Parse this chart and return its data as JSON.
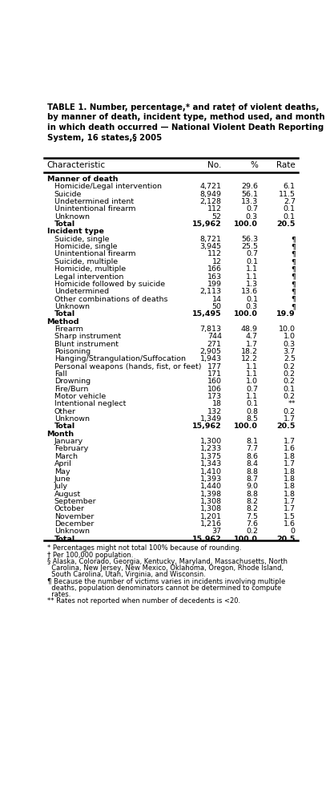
{
  "title": "TABLE 1. Number, percentage,* and rate† of violent deaths,\nby manner of death, incident type, method used, and month\nin which death occurred — National Violent Death Reporting\nSystem, 16 states,§ 2005",
  "col_headers": [
    "Characteristic",
    "No.",
    "%",
    "Rate"
  ],
  "rows": [
    {
      "label": "Manner of death",
      "no": "",
      "pct": "",
      "rate": "",
      "bold": true,
      "indent": 0,
      "section_header": true
    },
    {
      "label": "Homicide/Legal intervention",
      "no": "4,721",
      "pct": "29.6",
      "rate": "6.1",
      "bold": false,
      "indent": 1
    },
    {
      "label": "Suicide",
      "no": "8,949",
      "pct": "56.1",
      "rate": "11.5",
      "bold": false,
      "indent": 1
    },
    {
      "label": "Undetermined intent",
      "no": "2,128",
      "pct": "13.3",
      "rate": "2.7",
      "bold": false,
      "indent": 1
    },
    {
      "label": "Unintentional firearm",
      "no": "112",
      "pct": "0.7",
      "rate": "0.1",
      "bold": false,
      "indent": 1
    },
    {
      "label": "Unknown",
      "no": "52",
      "pct": "0.3",
      "rate": "0.1",
      "bold": false,
      "indent": 1
    },
    {
      "label": "Total",
      "no": "15,962",
      "pct": "100.0",
      "rate": "20.5",
      "bold": true,
      "indent": 1
    },
    {
      "label": "Incident type",
      "no": "",
      "pct": "",
      "rate": "",
      "bold": true,
      "indent": 0,
      "section_header": true
    },
    {
      "label": "Suicide, single",
      "no": "8,721",
      "pct": "56.3",
      "rate": "¶",
      "bold": false,
      "indent": 1
    },
    {
      "label": "Homicide, single",
      "no": "3,945",
      "pct": "25.5",
      "rate": "¶",
      "bold": false,
      "indent": 1
    },
    {
      "label": "Unintentional firearm",
      "no": "112",
      "pct": "0.7",
      "rate": "¶",
      "bold": false,
      "indent": 1
    },
    {
      "label": "Suicide, multiple",
      "no": "12",
      "pct": "0.1",
      "rate": "¶",
      "bold": false,
      "indent": 1
    },
    {
      "label": "Homicide, multiple",
      "no": "166",
      "pct": "1.1",
      "rate": "¶",
      "bold": false,
      "indent": 1
    },
    {
      "label": "Legal intervention",
      "no": "163",
      "pct": "1.1",
      "rate": "¶",
      "bold": false,
      "indent": 1
    },
    {
      "label": "Homicide followed by suicide",
      "no": "199",
      "pct": "1.3",
      "rate": "¶",
      "bold": false,
      "indent": 1
    },
    {
      "label": "Undetermined",
      "no": "2,113",
      "pct": "13.6",
      "rate": "¶",
      "bold": false,
      "indent": 1
    },
    {
      "label": "Other combinations of deaths",
      "no": "14",
      "pct": "0.1",
      "rate": "¶",
      "bold": false,
      "indent": 1
    },
    {
      "label": "Unknown",
      "no": "50",
      "pct": "0.3",
      "rate": "¶",
      "bold": false,
      "indent": 1
    },
    {
      "label": "Total",
      "no": "15,495",
      "pct": "100.0",
      "rate": "19.9",
      "bold": true,
      "indent": 1
    },
    {
      "label": "Method",
      "no": "",
      "pct": "",
      "rate": "",
      "bold": true,
      "indent": 0,
      "section_header": true
    },
    {
      "label": "Firearm",
      "no": "7,813",
      "pct": "48.9",
      "rate": "10.0",
      "bold": false,
      "indent": 1
    },
    {
      "label": "Sharp instrument",
      "no": "744",
      "pct": "4.7",
      "rate": "1.0",
      "bold": false,
      "indent": 1
    },
    {
      "label": "Blunt instrument",
      "no": "271",
      "pct": "1.7",
      "rate": "0.3",
      "bold": false,
      "indent": 1
    },
    {
      "label": "Poisoning",
      "no": "2,905",
      "pct": "18.2",
      "rate": "3.7",
      "bold": false,
      "indent": 1
    },
    {
      "label": "Hanging/Strangulation/Suffocation",
      "no": "1,943",
      "pct": "12.2",
      "rate": "2.5",
      "bold": false,
      "indent": 1
    },
    {
      "label": "Personal weapons (hands, fist, or feet)",
      "no": "177",
      "pct": "1.1",
      "rate": "0.2",
      "bold": false,
      "indent": 1
    },
    {
      "label": "Fall",
      "no": "171",
      "pct": "1.1",
      "rate": "0.2",
      "bold": false,
      "indent": 1
    },
    {
      "label": "Drowning",
      "no": "160",
      "pct": "1.0",
      "rate": "0.2",
      "bold": false,
      "indent": 1
    },
    {
      "label": "Fire/Burn",
      "no": "106",
      "pct": "0.7",
      "rate": "0.1",
      "bold": false,
      "indent": 1
    },
    {
      "label": "Motor vehicle",
      "no": "173",
      "pct": "1.1",
      "rate": "0.2",
      "bold": false,
      "indent": 1
    },
    {
      "label": "Intentional neglect",
      "no": "18",
      "pct": "0.1",
      "rate": "**",
      "bold": false,
      "indent": 1
    },
    {
      "label": "Other",
      "no": "132",
      "pct": "0.8",
      "rate": "0.2",
      "bold": false,
      "indent": 1
    },
    {
      "label": "Unknown",
      "no": "1,349",
      "pct": "8.5",
      "rate": "1.7",
      "bold": false,
      "indent": 1
    },
    {
      "label": "Total",
      "no": "15,962",
      "pct": "100.0",
      "rate": "20.5",
      "bold": true,
      "indent": 1
    },
    {
      "label": "Month",
      "no": "",
      "pct": "",
      "rate": "",
      "bold": true,
      "indent": 0,
      "section_header": true
    },
    {
      "label": "January",
      "no": "1,300",
      "pct": "8.1",
      "rate": "1.7",
      "bold": false,
      "indent": 1
    },
    {
      "label": "February",
      "no": "1,233",
      "pct": "7.7",
      "rate": "1.6",
      "bold": false,
      "indent": 1
    },
    {
      "label": "March",
      "no": "1,375",
      "pct": "8.6",
      "rate": "1.8",
      "bold": false,
      "indent": 1
    },
    {
      "label": "April",
      "no": "1,343",
      "pct": "8.4",
      "rate": "1.7",
      "bold": false,
      "indent": 1
    },
    {
      "label": "May",
      "no": "1,410",
      "pct": "8.8",
      "rate": "1.8",
      "bold": false,
      "indent": 1
    },
    {
      "label": "June",
      "no": "1,393",
      "pct": "8.7",
      "rate": "1.8",
      "bold": false,
      "indent": 1
    },
    {
      "label": "July",
      "no": "1,440",
      "pct": "9.0",
      "rate": "1.8",
      "bold": false,
      "indent": 1
    },
    {
      "label": "August",
      "no": "1,398",
      "pct": "8.8",
      "rate": "1.8",
      "bold": false,
      "indent": 1
    },
    {
      "label": "September",
      "no": "1,308",
      "pct": "8.2",
      "rate": "1.7",
      "bold": false,
      "indent": 1
    },
    {
      "label": "October",
      "no": "1,308",
      "pct": "8.2",
      "rate": "1.7",
      "bold": false,
      "indent": 1
    },
    {
      "label": "November",
      "no": "1,201",
      "pct": "7.5",
      "rate": "1.5",
      "bold": false,
      "indent": 1
    },
    {
      "label": "December",
      "no": "1,216",
      "pct": "7.6",
      "rate": "1.6",
      "bold": false,
      "indent": 1
    },
    {
      "label": "Unknown",
      "no": "37",
      "pct": "0.2",
      "rate": "0",
      "bold": false,
      "indent": 1
    },
    {
      "label": "Total",
      "no": "15,962",
      "pct": "100.0",
      "rate": "20.5",
      "bold": true,
      "indent": 1
    }
  ],
  "footnotes": [
    "* Percentages might not total 100% because of rounding.",
    "† Per 100,000 population.",
    "§ Alaska, Colorado, Georgia, Kentucky, Maryland, Massachusetts, North\n  Carolina, New Jersey, New Mexico, Oklahoma, Oregon, Rhode Island,\n  South Carolina, Utah, Virginia, and Wisconsin.",
    "¶ Because the number of victims varies in incidents involving multiple\n  deaths, population denominators cannot be determined to compute\n  rates.",
    "** Rates not reported when number of decedents is <20."
  ]
}
